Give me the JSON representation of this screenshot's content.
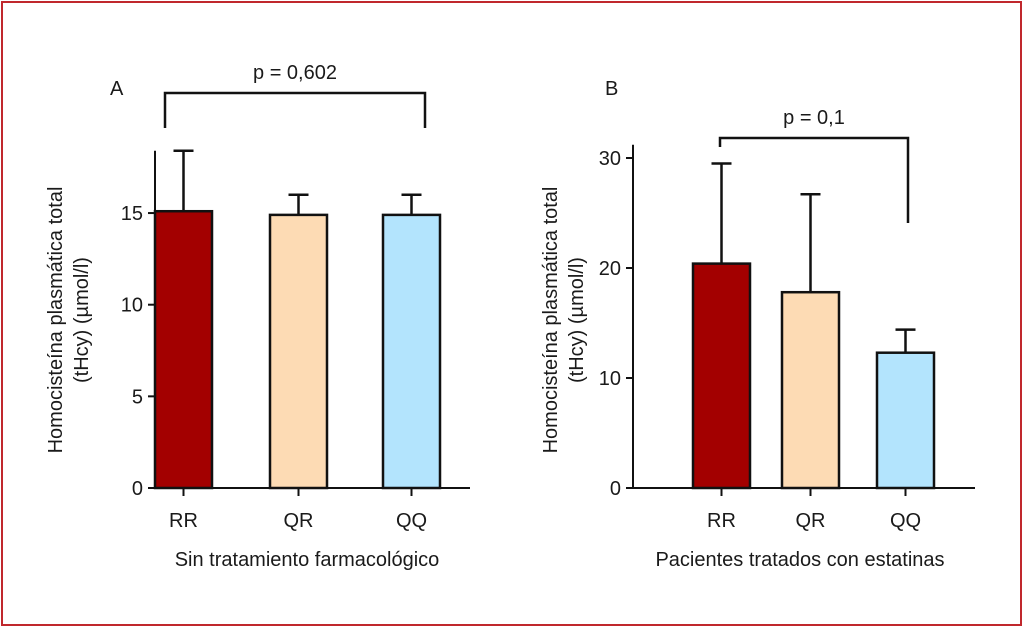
{
  "colors": {
    "frame": "#c0282d",
    "RR": "#a30000",
    "QR": "#fddbb4",
    "QQ": "#b3e4fd",
    "axis": "#111111"
  },
  "chart_data": [
    {
      "type": "bar",
      "panel_label": "A",
      "xlabel": "Sin tratamiento farmacológico",
      "ylabel": [
        "Homocisteína plasmática total",
        "(tHcy) (µmol/l)"
      ],
      "categories": [
        "RR",
        "QR",
        "QQ"
      ],
      "values": [
        15.1,
        14.9,
        14.9
      ],
      "error_upper": [
        18.4,
        16.0,
        16.0
      ],
      "ylim": [
        0,
        18.4
      ],
      "yticks": [
        0,
        5,
        10,
        15
      ],
      "grid": false,
      "annotation": {
        "text": "p = 0,602",
        "from": "RR",
        "to": "QQ"
      }
    },
    {
      "type": "bar",
      "panel_label": "B",
      "xlabel": "Pacientes tratados con estatinas",
      "ylabel": [
        "Homocisteína plasmática total",
        "(tHcy) (µmol/l)"
      ],
      "categories": [
        "RR",
        "QR",
        "QQ"
      ],
      "values": [
        20.4,
        17.8,
        12.3
      ],
      "error_upper": [
        29.5,
        26.7,
        14.4
      ],
      "ylim": [
        0,
        31.2
      ],
      "yticks": [
        0,
        10,
        20,
        30
      ],
      "grid": false,
      "annotation": {
        "text": "p = 0,1",
        "from": "RR",
        "to": "QQ"
      }
    }
  ]
}
